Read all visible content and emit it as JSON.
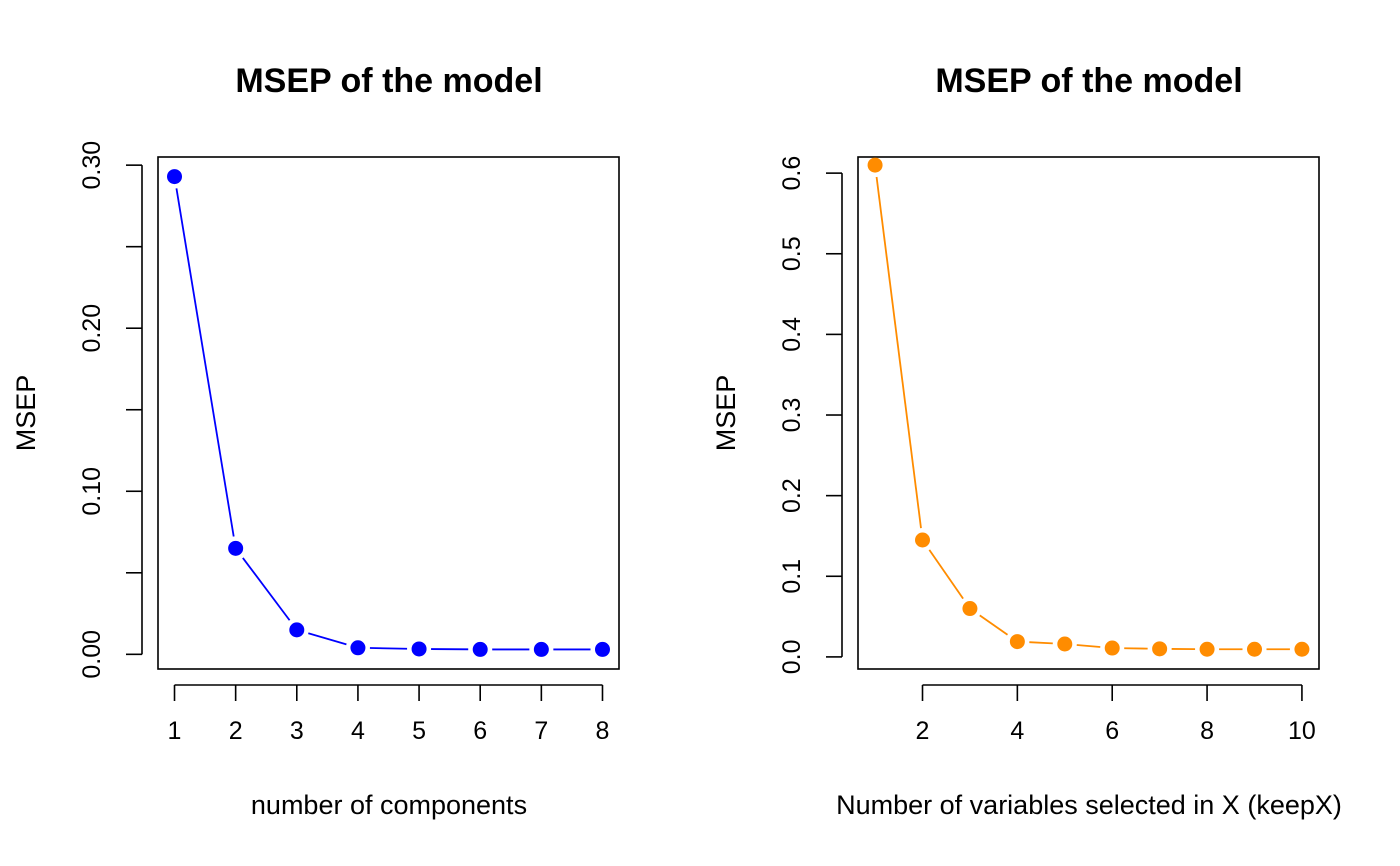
{
  "chart_data": [
    {
      "type": "line",
      "title": "MSEP of the model",
      "xlabel": "number of components",
      "ylabel": "MSEP",
      "color": "#0000ff",
      "marker": "filled-circle",
      "xlim": [
        0.73,
        8.27
      ],
      "ylim": [
        -0.009,
        0.305
      ],
      "xticks": [
        1,
        2,
        3,
        4,
        5,
        6,
        7,
        8
      ],
      "xtick_labels": [
        "1",
        "2",
        "3",
        "4",
        "5",
        "6",
        "7",
        "8"
      ],
      "yticks": [
        0.0,
        0.05,
        0.1,
        0.15,
        0.2,
        0.25,
        0.3
      ],
      "ytick_labels": [
        "0.00",
        "",
        "0.10",
        "",
        "0.20",
        "",
        "0.30"
      ],
      "grid": false,
      "series": [
        {
          "x": [
            1,
            2,
            3,
            4,
            5,
            6,
            7,
            8
          ],
          "y": [
            0.293,
            0.065,
            0.015,
            0.004,
            0.0033,
            0.003,
            0.003,
            0.003
          ]
        }
      ]
    },
    {
      "type": "line",
      "title": "MSEP of the model",
      "xlabel": "Number of variables selected in X (keepX)",
      "ylabel": "MSEP",
      "color": "#ff8c00",
      "marker": "filled-circle",
      "xlim": [
        0.64,
        10.36
      ],
      "ylim": [
        -0.015,
        0.62
      ],
      "xticks": [
        2,
        4,
        6,
        8,
        10
      ],
      "xtick_labels": [
        "2",
        "4",
        "6",
        "8",
        "10"
      ],
      "yticks": [
        0.0,
        0.1,
        0.2,
        0.3,
        0.4,
        0.5,
        0.6
      ],
      "ytick_labels": [
        "0.0",
        "0.1",
        "0.2",
        "0.3",
        "0.4",
        "0.5",
        "0.6"
      ],
      "grid": false,
      "series": [
        {
          "x": [
            1,
            2,
            3,
            4,
            5,
            6,
            7,
            8,
            9,
            10
          ],
          "y": [
            0.61,
            0.145,
            0.06,
            0.019,
            0.016,
            0.011,
            0.01,
            0.0095,
            0.0095,
            0.0095
          ]
        }
      ]
    }
  ]
}
